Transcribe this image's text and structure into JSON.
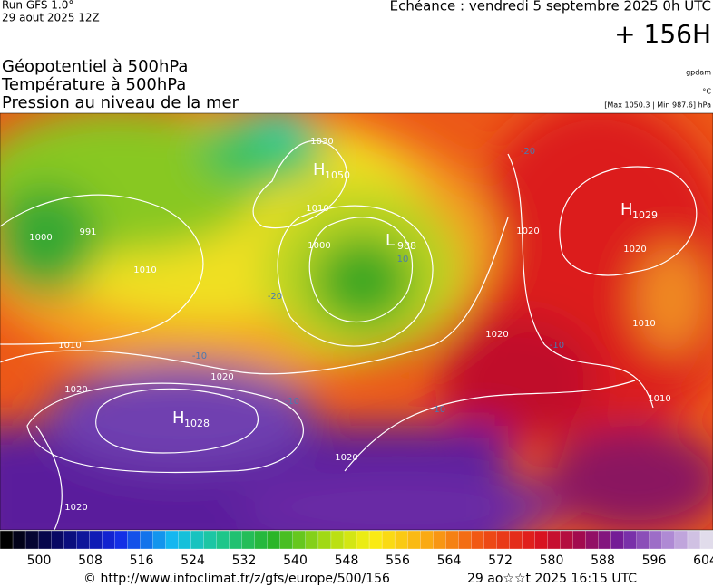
{
  "header": {
    "run": "Run GFS 1.0°",
    "run_date": "29 aout 2025 12Z",
    "valid": "Echéance : vendredi 5 septembre 2025 0h UTC",
    "lead": "+ 156H"
  },
  "legend": {
    "fields": [
      "Géopotentiel à 500hPa",
      "Température à 500hPa",
      "Pression au niveau de la mer"
    ],
    "units": [
      "gpdam",
      "°C",
      "[Max 1050.3 | Min 987.6] hPa"
    ]
  },
  "map": {
    "centers": [
      {
        "letter": "H",
        "value": "1050"
      },
      {
        "letter": "L",
        "value": "988"
      },
      {
        "letter": "H",
        "value": "1029"
      },
      {
        "letter": "H",
        "value": "1028"
      }
    ],
    "isobar_labels": [
      "1030",
      "1010",
      "1000",
      "1000",
      "991",
      "1010",
      "1010",
      "1020",
      "1020",
      "1020",
      "1020",
      "1020",
      "1010",
      "1010",
      "1020",
      "1020"
    ],
    "temperature_labels": [
      "-20",
      "-20",
      "-10",
      "-10",
      "-10",
      "-10",
      "10"
    ]
  },
  "colorbar": {
    "ticks": [
      500,
      508,
      516,
      524,
      532,
      540,
      548,
      556,
      564,
      572,
      580,
      588,
      596,
      604
    ]
  },
  "footer": {
    "url": "© http://www.infoclimat.fr/z/gfs/europe/500/156",
    "generated": "29 ao☆☆t 2025 16:15 UTC"
  }
}
